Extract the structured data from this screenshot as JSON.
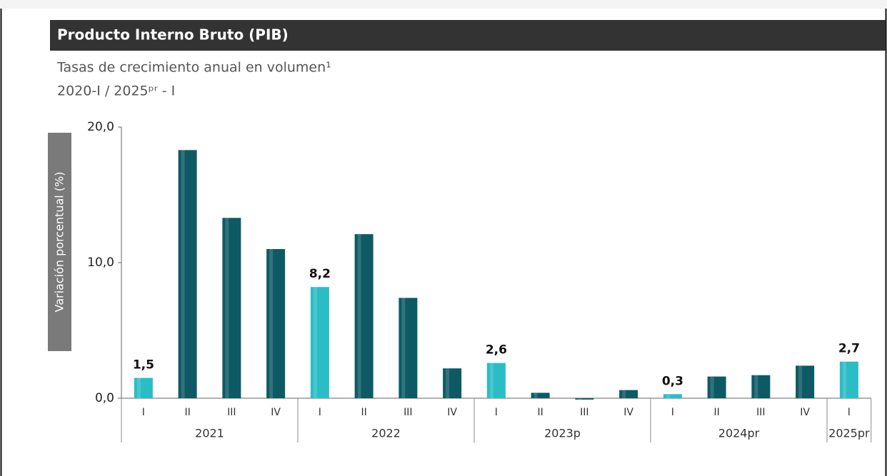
{
  "chart_data": {
    "type": "bar",
    "title": "Producto Interno Bruto (PIB)",
    "subtitle": "Tasas de crecimiento anual en volumen¹",
    "period": "2020-I / 2025ᵖʳ - I",
    "ylabel": "Variación porcentual (%)",
    "categories": [
      "I",
      "II",
      "III",
      "IV",
      "I",
      "II",
      "III",
      "IV",
      "I",
      "II",
      "III",
      "IV",
      "I",
      "II",
      "III",
      "IV",
      "I"
    ],
    "groups": [
      "2021",
      "2022",
      "2023p",
      "2024pr",
      "2025pr"
    ],
    "values": [
      1.5,
      18.3,
      13.3,
      11.0,
      8.2,
      12.1,
      7.4,
      2.2,
      2.6,
      0.4,
      -0.1,
      0.6,
      0.3,
      1.6,
      1.7,
      2.4,
      2.7
    ],
    "value_labels": [
      "1,5",
      null,
      null,
      null,
      "8,2",
      null,
      null,
      null,
      "2,6",
      null,
      null,
      null,
      "0,3",
      null,
      null,
      null,
      "2,7"
    ],
    "colors": [
      "#2bbdc6",
      "#0d5a64",
      "#0d5a64",
      "#0d5a64",
      "#2bbdc6",
      "#0d5a64",
      "#0d5a64",
      "#0d5a64",
      "#2bbdc6",
      "#0d5a64",
      "#0d5a64",
      "#0d5a64",
      "#2bbdc6",
      "#0d5a64",
      "#0d5a64",
      "#0d5a64",
      "#2bbdc6"
    ],
    "ylim": [
      0,
      20
    ],
    "yticks": [
      {
        "value": 0,
        "label": "0,0"
      },
      {
        "value": 10,
        "label": "10,0"
      },
      {
        "value": 20,
        "label": "20,0"
      }
    ]
  }
}
